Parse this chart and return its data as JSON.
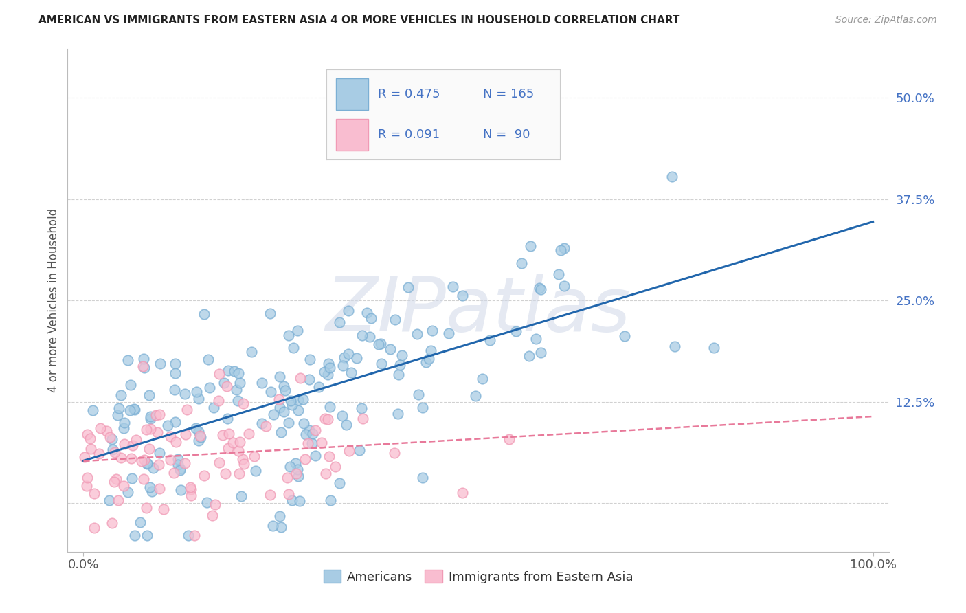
{
  "title": "AMERICAN VS IMMIGRANTS FROM EASTERN ASIA 4 OR MORE VEHICLES IN HOUSEHOLD CORRELATION CHART",
  "source": "Source: ZipAtlas.com",
  "ylabel": "4 or more Vehicles in Household",
  "xlim": [
    -0.02,
    1.02
  ],
  "ylim": [
    -0.06,
    0.56
  ],
  "xticks": [
    0.0,
    1.0
  ],
  "xticklabels": [
    "0.0%",
    "100.0%"
  ],
  "ytick_vals": [
    0.0,
    0.125,
    0.25,
    0.375,
    0.5
  ],
  "ytick_labels": [
    "",
    "12.5%",
    "25.0%",
    "37.5%",
    "50.0%"
  ],
  "watermark": "ZIPatlas",
  "legend_r1": "0.475",
  "legend_n1": "165",
  "legend_r2": "0.091",
  "legend_n2": " 90",
  "blue_scatter_color": "#a8cce4",
  "blue_scatter_edge": "#7bafd4",
  "pink_scatter_color": "#f9bdd0",
  "pink_scatter_edge": "#f09ab5",
  "blue_line_color": "#2166ac",
  "pink_line_color": "#e8799a",
  "grid_color": "#cccccc",
  "background_color": "#ffffff",
  "legend_text_color": "#4472c4",
  "legend_box_color": "#f0f0f8",
  "blue_n": 165,
  "pink_n": 90,
  "blue_R": 0.475,
  "pink_R": 0.091,
  "blue_seed": 12,
  "pink_seed": 7,
  "figsize": [
    14.06,
    8.92
  ],
  "dpi": 100
}
